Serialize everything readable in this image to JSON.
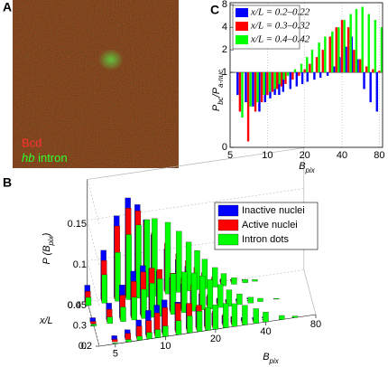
{
  "panels": [
    "A",
    "B",
    "C"
  ],
  "image_panel": {
    "channels": [
      "Bcd",
      [
        "hb",
        " intron"
      ]
    ]
  },
  "chart_data": [
    {
      "type": "bar3d",
      "xlabel": [
        "B",
        "pix"
      ],
      "ylabel": [
        "P (B",
        "pix",
        ")"
      ],
      "zlabel": "x/L",
      "x": [
        4,
        5,
        6,
        7,
        8,
        9,
        10,
        12,
        14,
        16,
        18,
        20,
        23,
        26,
        30,
        35,
        40,
        50,
        60
      ],
      "z": [
        0.2,
        0.3,
        0.4
      ],
      "xscale": "log",
      "xlim": [
        4,
        80
      ],
      "xticks": [
        5,
        10,
        20,
        40,
        80
      ],
      "ylim": [
        0,
        0.15
      ],
      "yticks": [
        0,
        0.05,
        0.1,
        0.15
      ],
      "zlim": [
        0.2,
        0.4
      ],
      "zticks": [
        0.2,
        0.3,
        0.4
      ],
      "grid": true,
      "legend": "upper right",
      "series": [
        {
          "name": "Inactive nuclei",
          "color": "#0000ff",
          "values": [
            [
              0,
              0.005,
              0.01,
              0.02,
              0.03,
              0.035,
              0.04,
              0.035,
              0.03,
              0.025,
              0.02,
              0.015,
              0.01,
              0.007,
              0.004,
              0.002,
              0.001,
              0,
              0
            ],
            [
              0.005,
              0.02,
              0.04,
              0.055,
              0.06,
              0.055,
              0.05,
              0.04,
              0.03,
              0.02,
              0.015,
              0.01,
              0.006,
              0.003,
              0.002,
              0.001,
              0,
              0,
              0
            ],
            [
              0.02,
              0.06,
              0.1,
              0.12,
              0.11,
              0.09,
              0.07,
              0.05,
              0.035,
              0.025,
              0.015,
              0.01,
              0.005,
              0.003,
              0.001,
              0,
              0,
              0,
              0
            ]
          ]
        },
        {
          "name": "Active nuclei",
          "color": "#ff0000",
          "values": [
            [
              0,
              0.003,
              0.008,
              0.015,
              0.02,
              0.028,
              0.033,
              0.036,
              0.034,
              0.03,
              0.025,
              0.02,
              0.014,
              0.009,
              0.005,
              0.003,
              0.001,
              0,
              0
            ],
            [
              0.003,
              0.015,
              0.03,
              0.045,
              0.055,
              0.058,
              0.055,
              0.048,
              0.04,
              0.03,
              0.022,
              0.015,
              0.009,
              0.005,
              0.003,
              0.001,
              0,
              0,
              0
            ],
            [
              0.015,
              0.05,
              0.09,
              0.11,
              0.105,
              0.09,
              0.075,
              0.06,
              0.045,
              0.035,
              0.025,
              0.017,
              0.01,
              0.006,
              0.003,
              0.001,
              0,
              0,
              0
            ]
          ]
        },
        {
          "name": "Intron dots",
          "color": "#00ff00",
          "values": [
            [
              0,
              0.001,
              0.003,
              0.005,
              0.008,
              0.01,
              0.013,
              0.017,
              0.021,
              0.025,
              0.028,
              0.03,
              0.03,
              0.028,
              0.024,
              0.018,
              0.012,
              0.005,
              0.002
            ],
            [
              0.002,
              0.008,
              0.018,
              0.028,
              0.036,
              0.042,
              0.046,
              0.05,
              0.05,
              0.047,
              0.042,
              0.036,
              0.028,
              0.02,
              0.013,
              0.007,
              0.004,
              0.001,
              0
            ],
            [
              0.01,
              0.035,
              0.06,
              0.08,
              0.09,
              0.095,
              0.095,
              0.088,
              0.075,
              0.06,
              0.048,
              0.036,
              0.024,
              0.015,
              0.008,
              0.004,
              0.002,
              0,
              0
            ]
          ]
        }
      ]
    },
    {
      "type": "bar",
      "xlabel": [
        "B",
        "pix"
      ],
      "ylabel": [
        "P",
        "bc",
        "/P",
        "a-nuc"
      ],
      "x": [
        6,
        7,
        8,
        9,
        10,
        11,
        12,
        13,
        14,
        16,
        18,
        20,
        22,
        25,
        28,
        32,
        36,
        40,
        45,
        50,
        56,
        63,
        71,
        80
      ],
      "xscale": "log",
      "yscale": "log",
      "xlim": [
        5,
        85
      ],
      "ylim": [
        0.1,
        8.5
      ],
      "xticks": [
        5,
        10,
        20,
        40,
        80
      ],
      "yticks": [
        {
          "value": 0.1,
          "label": "0"
        },
        1,
        2,
        4,
        8
      ],
      "baseline": 1,
      "grid": true,
      "legend": "upper left",
      "series": [
        {
          "name": "x/L = 0.2–0.22",
          "color": "#0000ff",
          "values": [
            0.5,
            0.4,
            0.35,
            0.3,
            0.4,
            0.45,
            0.5,
            0.5,
            0.55,
            0.6,
            0.65,
            0.7,
            0.75,
            0.8,
            0.85,
            0.9,
            1.2,
            1.6,
            2.2,
            3,
            1.5,
            0.6,
            0.4,
            0.3
          ]
        },
        {
          "name": "x/L = 0.3–0.32",
          "color": "#ff0000",
          "values": [
            0.3,
            0.12,
            0.3,
            0.4,
            0.5,
            0.55,
            0.6,
            0.65,
            0.7,
            0.8,
            0.9,
            1.1,
            1.3,
            1.6,
            2,
            3,
            4,
            5,
            4,
            2,
            1.5,
            1.2,
            1.1,
            1.05
          ]
        },
        {
          "name": "x/L = 0.4–0.42",
          "color": "#00ff00",
          "values": [
            0.25,
            0.35,
            0.4,
            0.5,
            0.55,
            0.6,
            0.7,
            0.8,
            0.9,
            1.1,
            1.3,
            1.6,
            2,
            2.5,
            3,
            3.5,
            4,
            5,
            6,
            7,
            7.5,
            6,
            5,
            4
          ]
        }
      ]
    }
  ]
}
